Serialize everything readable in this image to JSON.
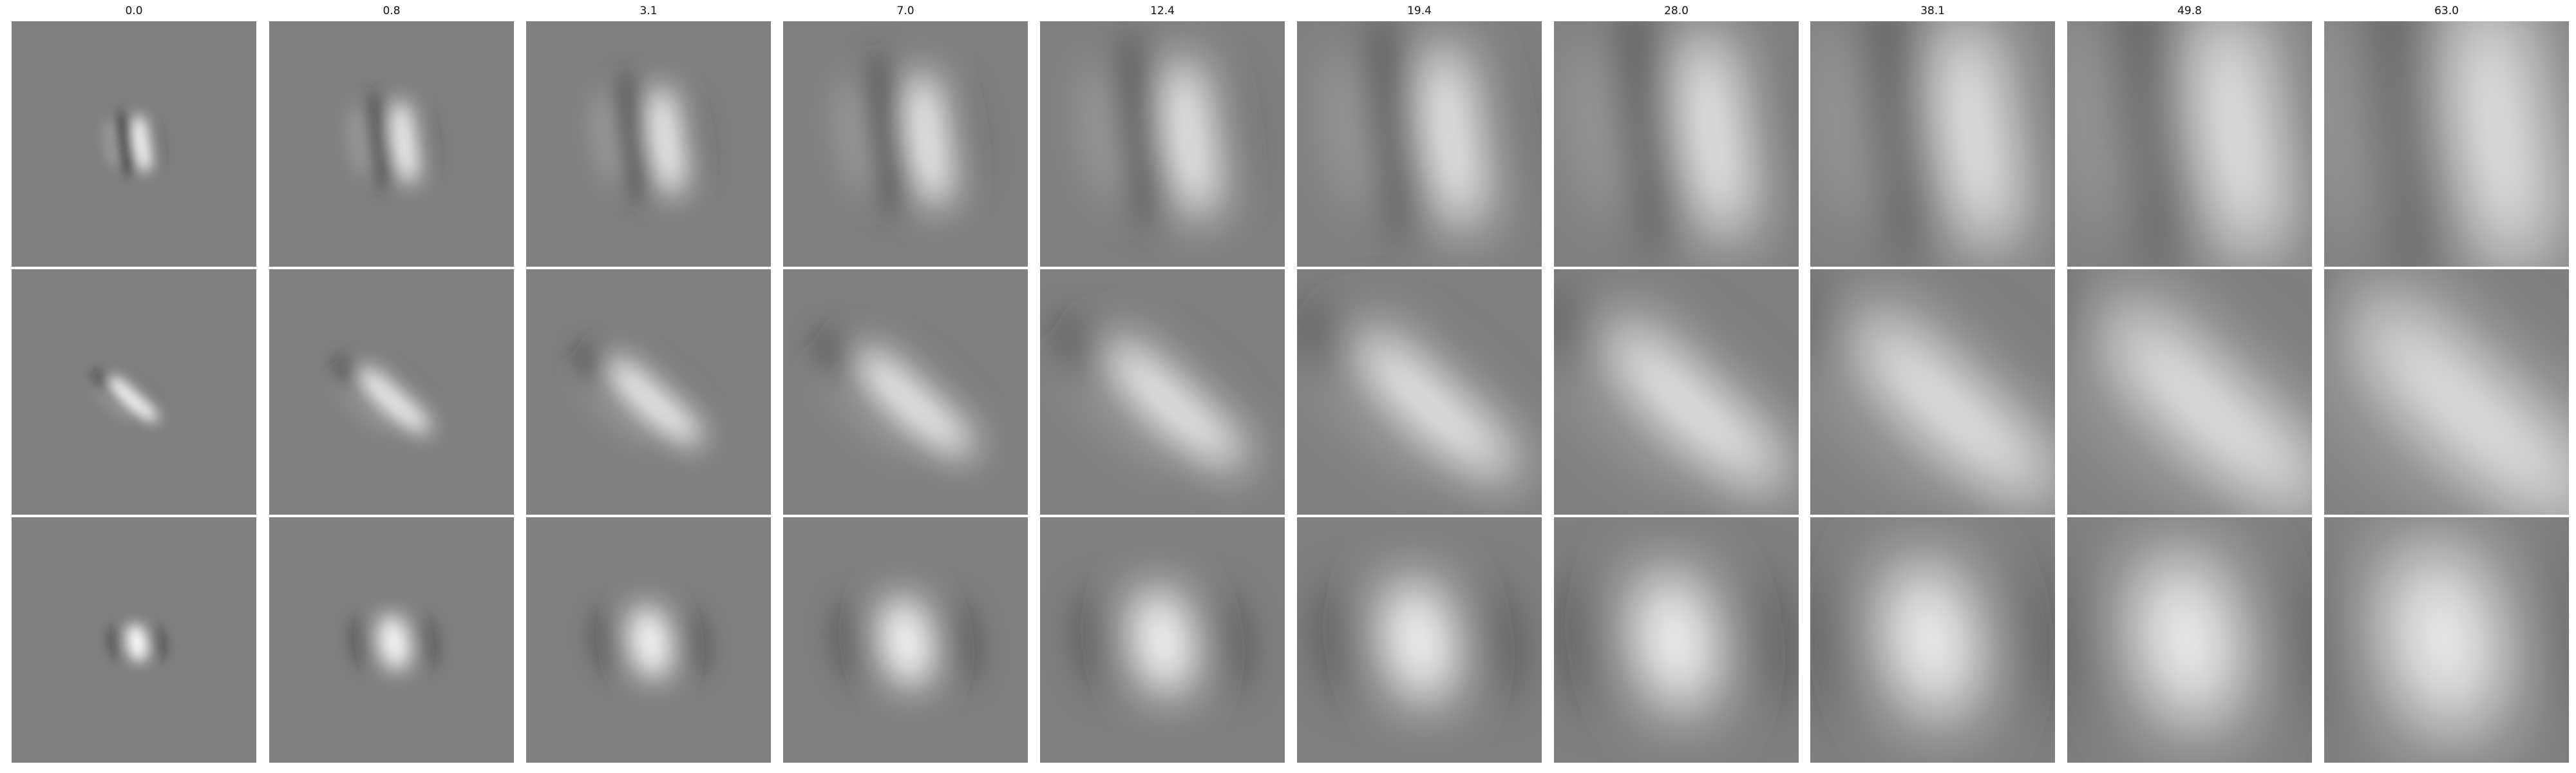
{
  "column_titles": [
    "0.0",
    "0.8",
    "3.1",
    "7.0",
    "12.4",
    "19.4",
    "28.0",
    "38.1",
    "49.8",
    "63.0"
  ],
  "rows": [
    {
      "name": "row-1",
      "pattern": "vertical-dark-light-pair"
    },
    {
      "name": "row-2",
      "pattern": "diagonal-dark-light-pair"
    },
    {
      "name": "row-3",
      "pattern": "central-light-blob"
    }
  ],
  "colors": {
    "background": "#ffffff",
    "panel_gray": "#808080",
    "dark": "#000000",
    "light": "#ffffff"
  }
}
